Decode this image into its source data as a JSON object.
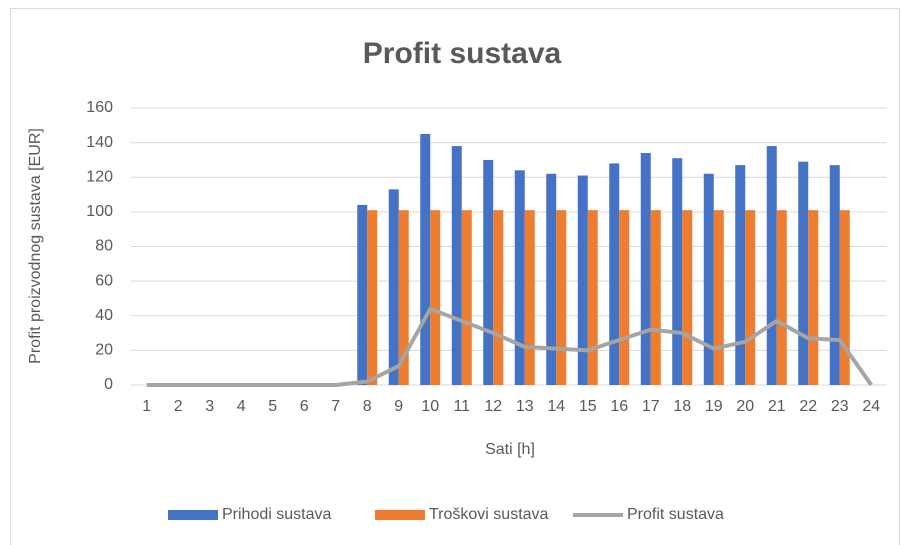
{
  "chart_data": {
    "type": "bar-line",
    "title": "Profit sustava",
    "x_label": "Sati [h]",
    "y_label": "Profit proizvodnog sustava [EUR]",
    "categories": [
      "1",
      "2",
      "3",
      "4",
      "5",
      "6",
      "7",
      "8",
      "9",
      "10",
      "11",
      "12",
      "13",
      "14",
      "15",
      "16",
      "17",
      "18",
      "19",
      "20",
      "21",
      "22",
      "23",
      "24"
    ],
    "series": [
      {
        "name": "Prihodi sustava",
        "kind": "bar",
        "color": "#4472c4",
        "values": [
          0,
          0,
          0,
          0,
          0,
          0,
          0,
          104,
          113,
          145,
          138,
          130,
          124,
          122,
          121,
          128,
          134,
          131,
          122,
          127,
          138,
          129,
          127,
          0
        ]
      },
      {
        "name": "Troškovi sustava",
        "kind": "bar",
        "color": "#ed7d31",
        "values": [
          0,
          0,
          0,
          0,
          0,
          0,
          0,
          101,
          101,
          101,
          101,
          101,
          101,
          101,
          101,
          101,
          101,
          101,
          101,
          101,
          101,
          101,
          101,
          0
        ]
      },
      {
        "name": "Profit sustava",
        "kind": "line",
        "color": "#a5a5a5",
        "values": [
          0,
          0,
          0,
          0,
          0,
          0,
          0,
          2,
          11,
          44,
          37,
          30,
          22,
          21,
          20,
          26,
          32,
          30,
          21,
          25,
          37,
          27,
          26,
          0
        ]
      }
    ],
    "ylim": [
      0,
      160
    ],
    "yticks": [
      0,
      20,
      40,
      60,
      80,
      100,
      120,
      140,
      160
    ],
    "grid": true,
    "legend": "bottom"
  }
}
